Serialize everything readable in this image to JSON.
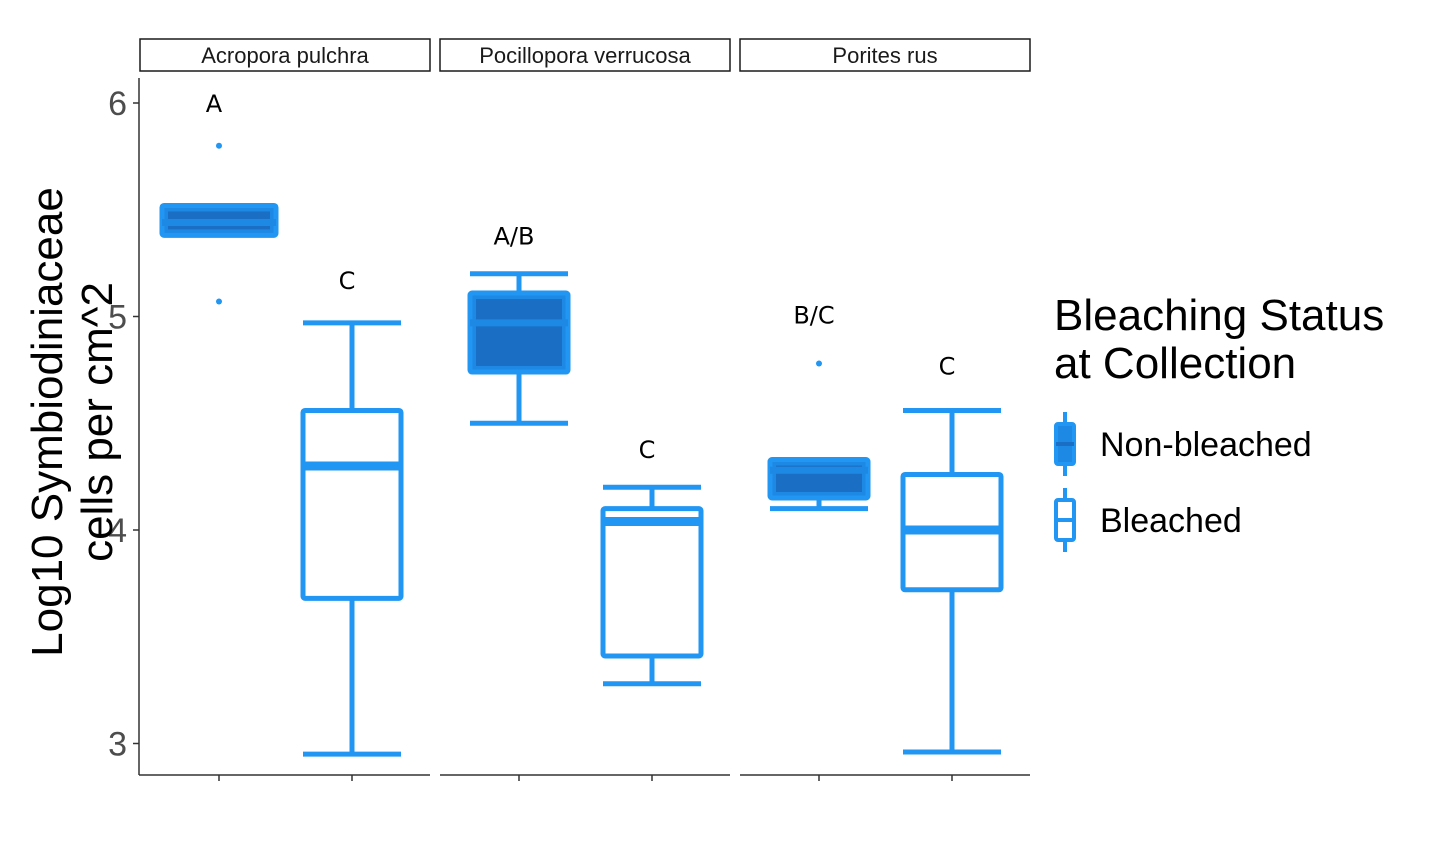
{
  "chart_data": {
    "type": "boxplot",
    "ylabel_lines": [
      "Log10 Symbiodiniaceae",
      "cells per cm^2"
    ],
    "ylim": [
      2.85,
      6.2
    ],
    "yticks": [
      3,
      4,
      5,
      6
    ],
    "grid": false,
    "legend_placement": "right",
    "legend": {
      "title_lines": [
        "Bleaching Status",
        "at Collection"
      ],
      "entries": [
        {
          "label": "Non-bleached",
          "filled": true
        },
        {
          "label": "Bleached",
          "filled": false
        }
      ]
    },
    "colors": {
      "line": "#2196f3",
      "fill": "#1e88e5",
      "median_dark": "#1a6fc4"
    },
    "facets": [
      {
        "name": "Acropora pulchra",
        "groups": [
          {
            "status": "Non-bleached",
            "whisker_low": 5.38,
            "q1": 5.38,
            "median": 5.44,
            "q3": 5.52,
            "whisker_high": 5.52,
            "outliers": [
              5.8,
              5.07
            ],
            "letter": "A",
            "letter_y": 6.0
          },
          {
            "status": "Bleached",
            "whisker_low": 2.95,
            "q1": 3.68,
            "median": 4.3,
            "q3": 4.56,
            "whisker_high": 4.97,
            "outliers": [],
            "letter": "C",
            "letter_y": 5.17
          }
        ]
      },
      {
        "name": "Pocillopora verrucosa",
        "groups": [
          {
            "status": "Non-bleached",
            "whisker_low": 4.5,
            "q1": 4.74,
            "median": 4.97,
            "q3": 5.11,
            "whisker_high": 5.2,
            "outliers": [],
            "letter": "A/B",
            "letter_y": 5.38
          },
          {
            "status": "Bleached",
            "whisker_low": 3.28,
            "q1": 3.41,
            "median": 4.04,
            "q3": 4.1,
            "whisker_high": 4.2,
            "outliers": [],
            "letter": "C",
            "letter_y": 4.38
          }
        ]
      },
      {
        "name": "Porites rus",
        "groups": [
          {
            "status": "Non-bleached",
            "whisker_low": 4.1,
            "q1": 4.15,
            "median": 4.28,
            "q3": 4.33,
            "whisker_high": 4.33,
            "outliers": [
              4.78
            ],
            "letter": "B/C",
            "letter_y": 5.01
          },
          {
            "status": "Bleached",
            "whisker_low": 2.96,
            "q1": 3.72,
            "median": 4.0,
            "q3": 4.26,
            "whisker_high": 4.56,
            "outliers": [],
            "letter": "C",
            "letter_y": 4.77
          }
        ]
      }
    ]
  }
}
